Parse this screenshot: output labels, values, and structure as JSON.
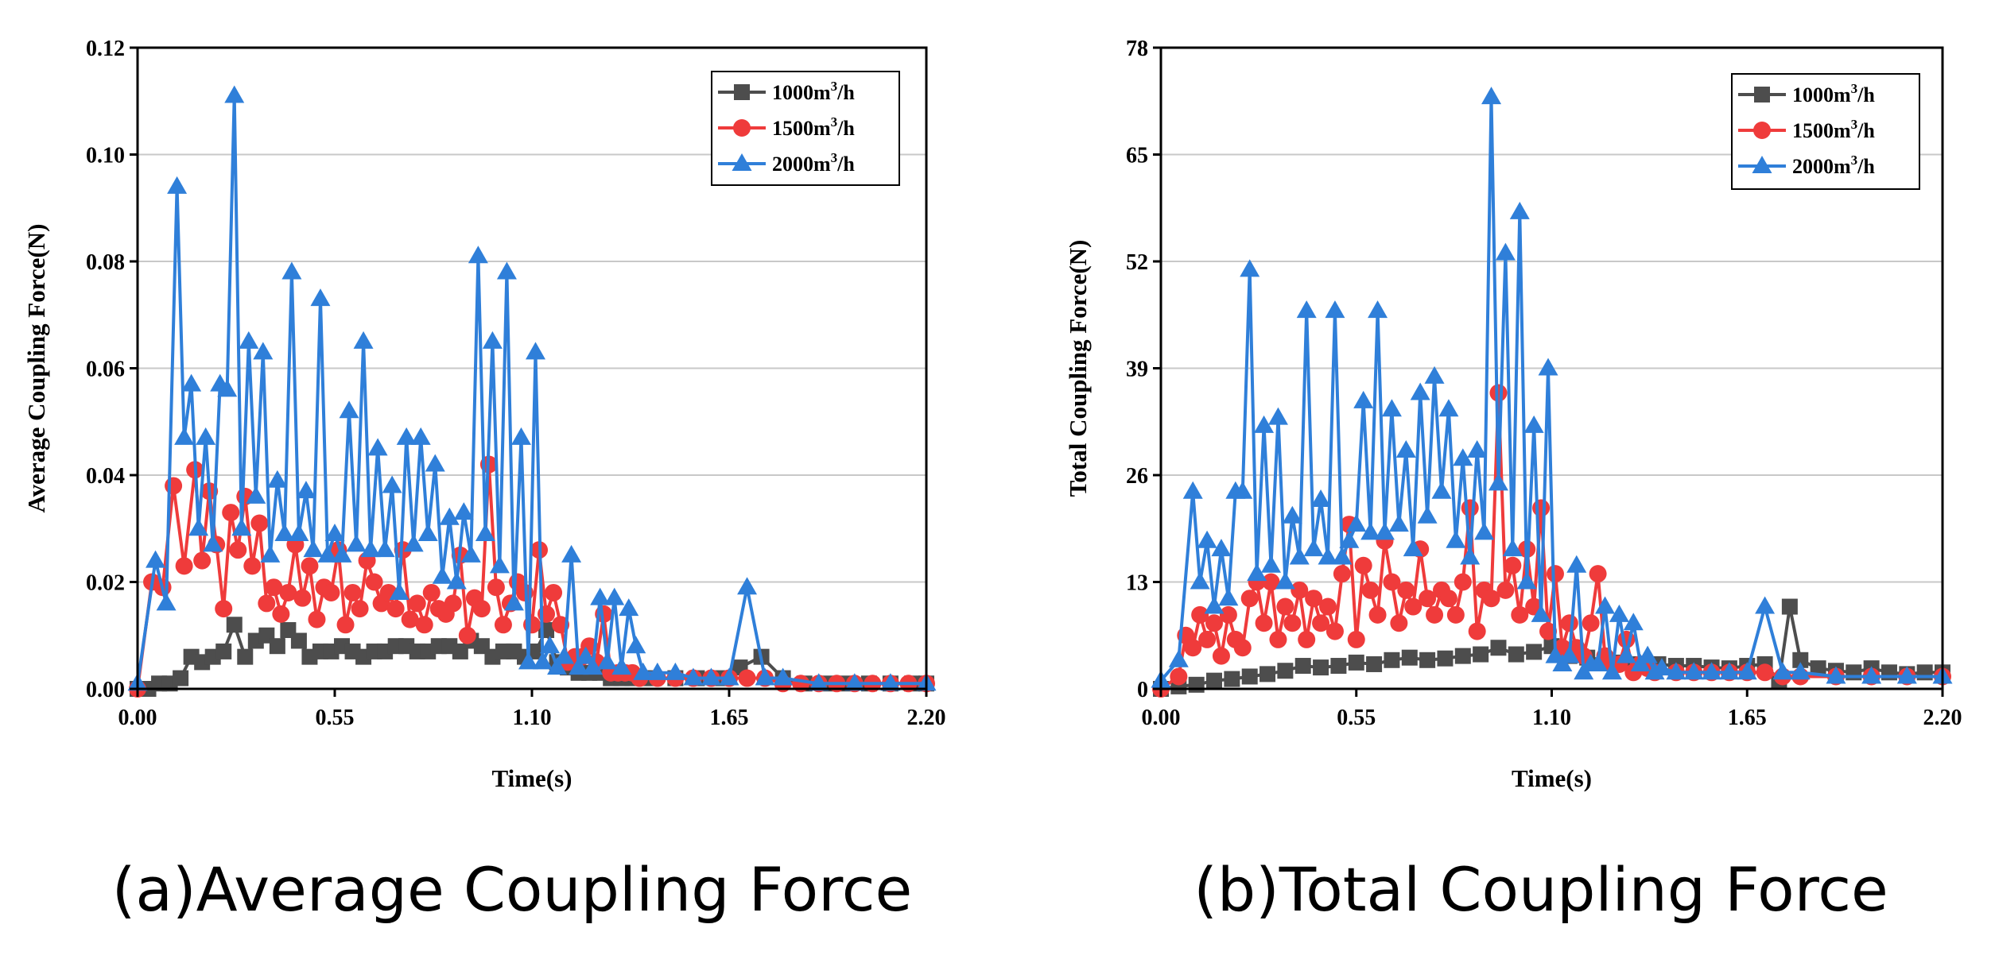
{
  "chart_data": [
    {
      "type": "line",
      "caption": "(a)Average Coupling Force",
      "xlabel": "Time(s)",
      "ylabel": "Average Coupling Force(N)",
      "xlim": [
        0,
        2.2
      ],
      "ylim": [
        0,
        0.12
      ],
      "xticks": [
        "0.00",
        "0.55",
        "1.10",
        "1.65",
        "2.20"
      ],
      "yticks": [
        "0.00",
        "0.02",
        "0.04",
        "0.06",
        "0.08",
        "0.10",
        "0.12"
      ],
      "grid": true,
      "legend_position": "top-right",
      "series": [
        {
          "name": "1000m³/h",
          "label_base": "1000m",
          "label_sup": "3",
          "label_tail": "/h",
          "color": "#4d4d4d",
          "marker": "square",
          "x": [
            0.0,
            0.03,
            0.06,
            0.09,
            0.12,
            0.15,
            0.18,
            0.21,
            0.24,
            0.27,
            0.3,
            0.33,
            0.36,
            0.39,
            0.42,
            0.45,
            0.48,
            0.51,
            0.54,
            0.57,
            0.6,
            0.63,
            0.66,
            0.69,
            0.72,
            0.75,
            0.78,
            0.81,
            0.84,
            0.87,
            0.9,
            0.93,
            0.96,
            0.99,
            1.02,
            1.05,
            1.08,
            1.11,
            1.14,
            1.17,
            1.2,
            1.23,
            1.26,
            1.29,
            1.32,
            1.35,
            1.38,
            1.41,
            1.44,
            1.5,
            1.56,
            1.62,
            1.68,
            1.74,
            1.8,
            1.86,
            1.92,
            1.98,
            2.04,
            2.1,
            2.16,
            2.2
          ],
          "y": [
            0.0,
            0.0,
            0.001,
            0.001,
            0.002,
            0.006,
            0.005,
            0.006,
            0.007,
            0.012,
            0.006,
            0.009,
            0.01,
            0.008,
            0.011,
            0.009,
            0.006,
            0.007,
            0.007,
            0.008,
            0.007,
            0.006,
            0.007,
            0.007,
            0.008,
            0.008,
            0.007,
            0.007,
            0.008,
            0.008,
            0.007,
            0.009,
            0.008,
            0.006,
            0.007,
            0.007,
            0.006,
            0.007,
            0.011,
            0.005,
            0.004,
            0.003,
            0.003,
            0.003,
            0.002,
            0.002,
            0.002,
            0.002,
            0.002,
            0.002,
            0.002,
            0.002,
            0.004,
            0.006,
            0.002,
            0.001,
            0.001,
            0.001,
            0.001,
            0.001,
            0.001,
            0.001
          ]
        },
        {
          "name": "1500m³/h",
          "label_base": "1500m",
          "label_sup": "3",
          "label_tail": "/h",
          "color": "#ef3b3b",
          "marker": "circle",
          "x": [
            0.0,
            0.04,
            0.07,
            0.1,
            0.13,
            0.16,
            0.18,
            0.2,
            0.22,
            0.24,
            0.26,
            0.28,
            0.3,
            0.32,
            0.34,
            0.36,
            0.38,
            0.4,
            0.42,
            0.44,
            0.46,
            0.48,
            0.5,
            0.52,
            0.54,
            0.56,
            0.58,
            0.6,
            0.62,
            0.64,
            0.66,
            0.68,
            0.7,
            0.72,
            0.74,
            0.76,
            0.78,
            0.8,
            0.82,
            0.84,
            0.86,
            0.88,
            0.9,
            0.92,
            0.94,
            0.96,
            0.98,
            1.0,
            1.02,
            1.04,
            1.06,
            1.08,
            1.1,
            1.12,
            1.14,
            1.16,
            1.18,
            1.2,
            1.22,
            1.24,
            1.26,
            1.28,
            1.3,
            1.32,
            1.34,
            1.36,
            1.38,
            1.4,
            1.45,
            1.5,
            1.55,
            1.6,
            1.65,
            1.7,
            1.75,
            1.8,
            1.85,
            1.9,
            1.95,
            2.0,
            2.05,
            2.1,
            2.15,
            2.2
          ],
          "y": [
            0.0,
            0.02,
            0.019,
            0.038,
            0.023,
            0.041,
            0.024,
            0.037,
            0.027,
            0.015,
            0.033,
            0.026,
            0.036,
            0.023,
            0.031,
            0.016,
            0.019,
            0.014,
            0.018,
            0.027,
            0.017,
            0.023,
            0.013,
            0.019,
            0.018,
            0.026,
            0.012,
            0.018,
            0.015,
            0.024,
            0.02,
            0.016,
            0.018,
            0.015,
            0.026,
            0.013,
            0.016,
            0.012,
            0.018,
            0.015,
            0.014,
            0.016,
            0.025,
            0.01,
            0.017,
            0.015,
            0.042,
            0.019,
            0.012,
            0.016,
            0.02,
            0.018,
            0.012,
            0.026,
            0.014,
            0.018,
            0.012,
            0.005,
            0.006,
            0.006,
            0.008,
            0.005,
            0.014,
            0.003,
            0.003,
            0.003,
            0.003,
            0.002,
            0.002,
            0.002,
            0.002,
            0.002,
            0.002,
            0.002,
            0.002,
            0.001,
            0.001,
            0.001,
            0.001,
            0.001,
            0.001,
            0.001,
            0.001,
            0.001
          ]
        },
        {
          "name": "2000m³/h",
          "label_base": "2000m",
          "label_sup": "3",
          "label_tail": "/h",
          "color": "#2f7fd9",
          "marker": "triangle",
          "x": [
            0.0,
            0.05,
            0.08,
            0.11,
            0.13,
            0.15,
            0.17,
            0.19,
            0.21,
            0.23,
            0.25,
            0.27,
            0.29,
            0.31,
            0.33,
            0.35,
            0.37,
            0.39,
            0.41,
            0.43,
            0.45,
            0.47,
            0.49,
            0.51,
            0.53,
            0.55,
            0.57,
            0.59,
            0.61,
            0.63,
            0.65,
            0.67,
            0.69,
            0.71,
            0.73,
            0.75,
            0.77,
            0.79,
            0.81,
            0.83,
            0.85,
            0.87,
            0.89,
            0.91,
            0.93,
            0.95,
            0.97,
            0.99,
            1.01,
            1.03,
            1.05,
            1.07,
            1.09,
            1.11,
            1.13,
            1.15,
            1.17,
            1.19,
            1.21,
            1.23,
            1.25,
            1.27,
            1.29,
            1.31,
            1.33,
            1.35,
            1.37,
            1.39,
            1.41,
            1.45,
            1.5,
            1.55,
            1.6,
            1.65,
            1.7,
            1.75,
            1.8,
            1.9,
            2.0,
            2.1,
            2.2
          ],
          "y": [
            0.001,
            0.024,
            0.016,
            0.094,
            0.047,
            0.057,
            0.03,
            0.047,
            0.027,
            0.057,
            0.056,
            0.111,
            0.03,
            0.065,
            0.036,
            0.063,
            0.025,
            0.039,
            0.029,
            0.078,
            0.029,
            0.037,
            0.026,
            0.073,
            0.025,
            0.029,
            0.025,
            0.052,
            0.027,
            0.065,
            0.026,
            0.045,
            0.026,
            0.038,
            0.018,
            0.047,
            0.027,
            0.047,
            0.029,
            0.042,
            0.021,
            0.032,
            0.02,
            0.033,
            0.025,
            0.081,
            0.029,
            0.065,
            0.023,
            0.078,
            0.016,
            0.047,
            0.005,
            0.063,
            0.005,
            0.008,
            0.004,
            0.006,
            0.025,
            0.004,
            0.006,
            0.004,
            0.017,
            0.005,
            0.017,
            0.004,
            0.015,
            0.008,
            0.003,
            0.003,
            0.003,
            0.002,
            0.002,
            0.002,
            0.019,
            0.002,
            0.002,
            0.001,
            0.001,
            0.001,
            0.001
          ]
        }
      ]
    },
    {
      "type": "line",
      "caption": "(b)Total Coupling Force",
      "xlabel": "Time(s)",
      "ylabel": "Total Coupling Force(N)",
      "xlim": [
        0,
        2.2
      ],
      "ylim": [
        0,
        78
      ],
      "xticks": [
        "0.00",
        "0.55",
        "1.10",
        "1.65",
        "2.20"
      ],
      "yticks": [
        "0",
        "13",
        "26",
        "39",
        "52",
        "65",
        "78"
      ],
      "grid": true,
      "legend_position": "top-right",
      "series": [
        {
          "name": "1000m³/h",
          "label_base": "1000m",
          "label_sup": "3",
          "label_tail": "/h",
          "color": "#4d4d4d",
          "marker": "square",
          "x": [
            0.0,
            0.05,
            0.1,
            0.15,
            0.2,
            0.25,
            0.3,
            0.35,
            0.4,
            0.45,
            0.5,
            0.55,
            0.6,
            0.65,
            0.7,
            0.75,
            0.8,
            0.85,
            0.9,
            0.95,
            1.0,
            1.05,
            1.1,
            1.15,
            1.2,
            1.25,
            1.3,
            1.35,
            1.4,
            1.45,
            1.5,
            1.55,
            1.6,
            1.65,
            1.7,
            1.74,
            1.77,
            1.8,
            1.85,
            1.9,
            1.95,
            2.0,
            2.05,
            2.1,
            2.15,
            2.2
          ],
          "y": [
            0.0,
            0.3,
            0.5,
            1.0,
            1.2,
            1.5,
            1.8,
            2.2,
            2.8,
            2.6,
            2.8,
            3.2,
            3.0,
            3.5,
            3.8,
            3.5,
            3.7,
            4.0,
            4.2,
            5.0,
            4.2,
            4.5,
            5.2,
            4.0,
            3.8,
            3.5,
            3.2,
            3.0,
            3.0,
            2.8,
            2.8,
            2.6,
            2.5,
            2.8,
            3.0,
            1.0,
            10.0,
            3.5,
            2.5,
            2.2,
            2.0,
            2.5,
            2.0,
            1.8,
            2.0,
            2.0
          ]
        },
        {
          "name": "1500m³/h",
          "label_base": "1500m",
          "label_sup": "3",
          "label_tail": "/h",
          "color": "#ef3b3b",
          "marker": "circle",
          "x": [
            0.0,
            0.05,
            0.07,
            0.09,
            0.11,
            0.13,
            0.15,
            0.17,
            0.19,
            0.21,
            0.23,
            0.25,
            0.27,
            0.29,
            0.31,
            0.33,
            0.35,
            0.37,
            0.39,
            0.41,
            0.43,
            0.45,
            0.47,
            0.49,
            0.51,
            0.53,
            0.55,
            0.57,
            0.59,
            0.61,
            0.63,
            0.65,
            0.67,
            0.69,
            0.71,
            0.73,
            0.75,
            0.77,
            0.79,
            0.81,
            0.83,
            0.85,
            0.87,
            0.89,
            0.91,
            0.93,
            0.95,
            0.97,
            0.99,
            1.01,
            1.03,
            1.05,
            1.07,
            1.09,
            1.11,
            1.13,
            1.15,
            1.17,
            1.19,
            1.21,
            1.23,
            1.25,
            1.27,
            1.29,
            1.31,
            1.33,
            1.35,
            1.37,
            1.39,
            1.45,
            1.5,
            1.55,
            1.6,
            1.65,
            1.7,
            1.75,
            1.8,
            1.9,
            2.0,
            2.1,
            2.2
          ],
          "y": [
            0.0,
            1.5,
            6.5,
            5.0,
            9.0,
            6.0,
            8.0,
            4.0,
            9.0,
            6.0,
            5.0,
            11.0,
            13.0,
            8.0,
            13.0,
            6.0,
            10.0,
            8.0,
            12.0,
            6.0,
            11.0,
            8.0,
            10.0,
            7.0,
            14.0,
            20.0,
            6.0,
            15.0,
            12.0,
            9.0,
            18.0,
            13.0,
            8.0,
            12.0,
            10.0,
            17.0,
            11.0,
            9.0,
            12.0,
            11.0,
            9.0,
            13.0,
            22.0,
            7.0,
            12.0,
            11.0,
            36.0,
            12.0,
            15.0,
            9.0,
            17.0,
            10.0,
            22.0,
            7.0,
            14.0,
            5.0,
            8.0,
            5.0,
            4.0,
            8.0,
            14.0,
            4.0,
            3.0,
            3.0,
            6.0,
            2.0,
            3.0,
            2.5,
            2.0,
            2.0,
            2.0,
            2.0,
            2.0,
            2.0,
            2.0,
            1.5,
            1.5,
            1.5,
            1.5,
            1.5,
            1.5
          ]
        },
        {
          "name": "2000m³/h",
          "label_base": "2000m",
          "label_sup": "3",
          "label_tail": "/h",
          "color": "#2f7fd9",
          "marker": "triangle",
          "x": [
            0.0,
            0.05,
            0.09,
            0.11,
            0.13,
            0.15,
            0.17,
            0.19,
            0.21,
            0.23,
            0.25,
            0.27,
            0.29,
            0.31,
            0.33,
            0.35,
            0.37,
            0.39,
            0.41,
            0.43,
            0.45,
            0.47,
            0.49,
            0.51,
            0.53,
            0.55,
            0.57,
            0.59,
            0.61,
            0.63,
            0.65,
            0.67,
            0.69,
            0.71,
            0.73,
            0.75,
            0.77,
            0.79,
            0.81,
            0.83,
            0.85,
            0.87,
            0.89,
            0.91,
            0.93,
            0.95,
            0.97,
            0.99,
            1.01,
            1.03,
            1.05,
            1.07,
            1.09,
            1.11,
            1.13,
            1.15,
            1.17,
            1.19,
            1.21,
            1.23,
            1.25,
            1.27,
            1.29,
            1.31,
            1.33,
            1.35,
            1.37,
            1.39,
            1.41,
            1.45,
            1.5,
            1.55,
            1.6,
            1.65,
            1.7,
            1.75,
            1.8,
            1.9,
            2.0,
            2.1,
            2.2
          ],
          "y": [
            1.0,
            3.5,
            24.0,
            13.0,
            18.0,
            10.0,
            17.0,
            11.0,
            24.0,
            24.0,
            51.0,
            14.0,
            32.0,
            15.0,
            33.0,
            13.0,
            21.0,
            16.0,
            46.0,
            17.0,
            23.0,
            16.0,
            46.0,
            16.0,
            18.0,
            20.0,
            35.0,
            19.0,
            46.0,
            19.0,
            34.0,
            20.0,
            29.0,
            17.0,
            36.0,
            21.0,
            38.0,
            24.0,
            34.0,
            18.0,
            28.0,
            16.0,
            29.0,
            19.0,
            72.0,
            25.0,
            53.0,
            17.0,
            58.0,
            13.0,
            32.0,
            9.0,
            39.0,
            4.0,
            3.0,
            4.0,
            15.0,
            2.0,
            3.0,
            3.0,
            10.0,
            2.0,
            9.0,
            4.0,
            8.0,
            3.0,
            4.0,
            2.0,
            2.5,
            2.0,
            2.0,
            2.0,
            2.0,
            2.0,
            10.0,
            2.0,
            2.0,
            1.5,
            1.5,
            1.5,
            1.5
          ]
        }
      ]
    }
  ]
}
